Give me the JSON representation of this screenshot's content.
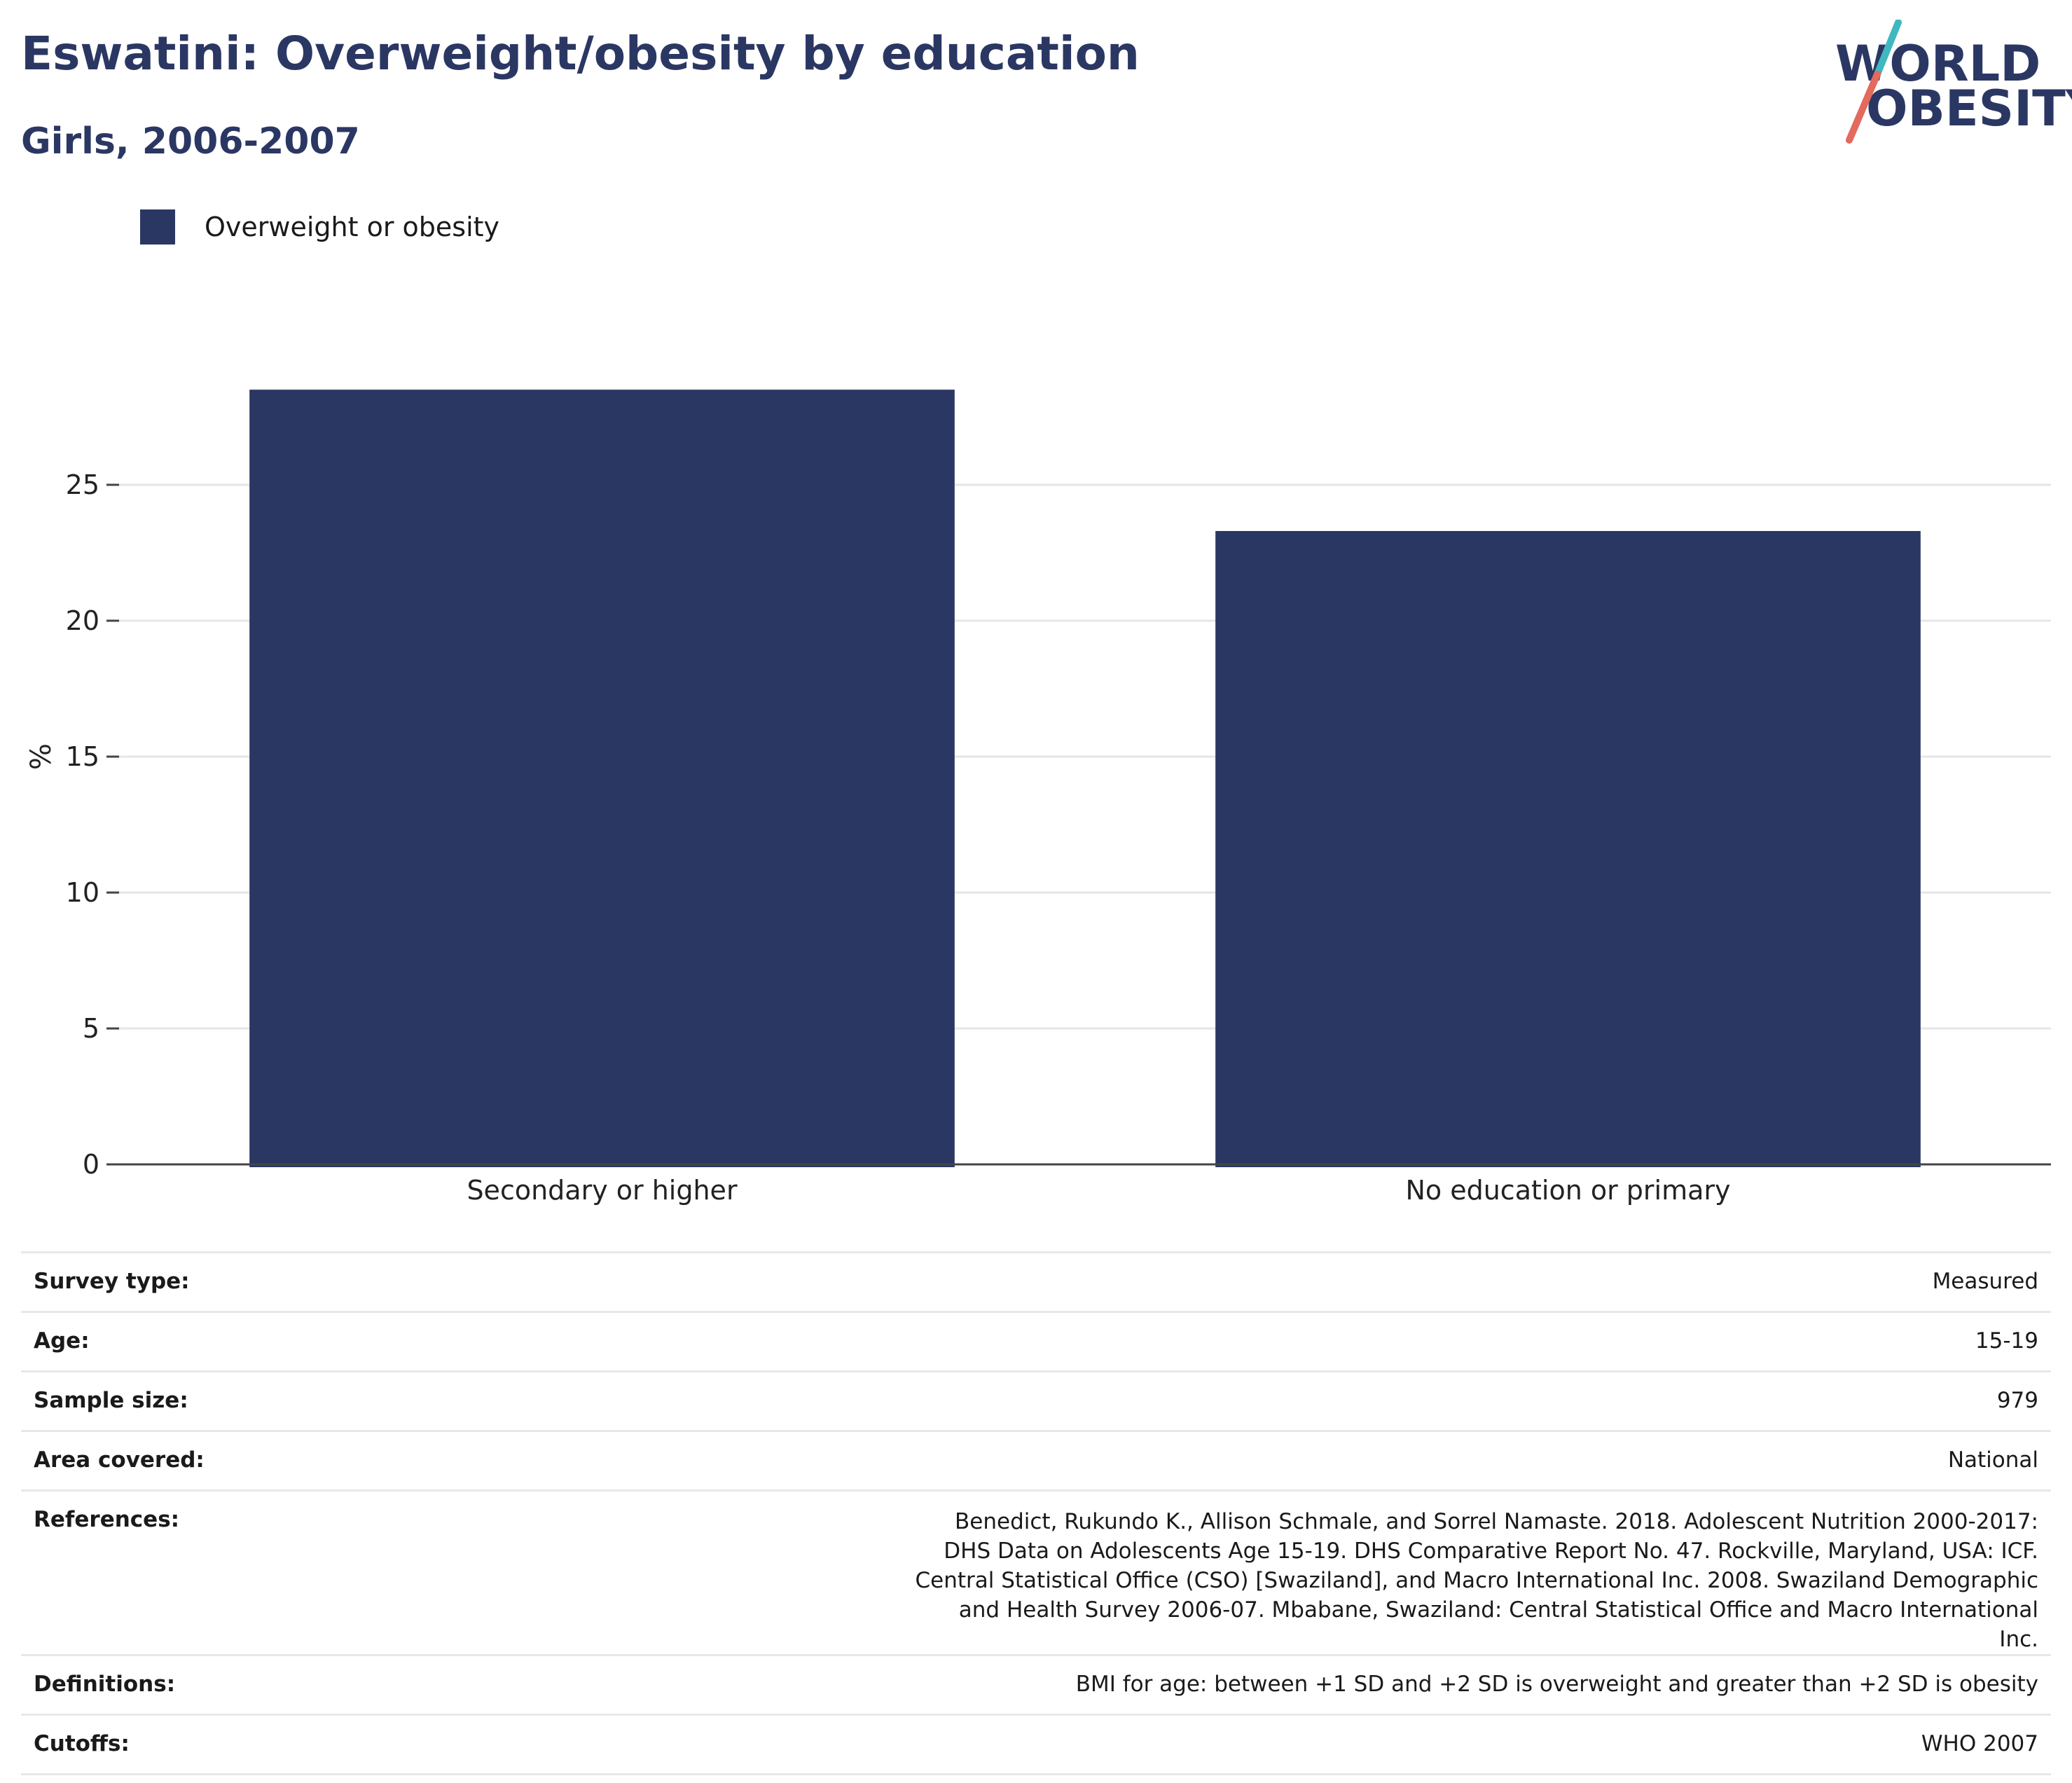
{
  "header": {
    "title": "Eswatini: Overweight/obesity by education",
    "subtitle": "Girls, 2006-2007"
  },
  "logo": {
    "line1": "WORLD",
    "line2": "OBESITY",
    "accent_colors": [
      "#3fb8c0",
      "#e36a5c"
    ]
  },
  "legend": {
    "label": "Overweight or obesity",
    "color": "#2b3763"
  },
  "chart_data": {
    "type": "bar",
    "categories": [
      "Secondary or higher",
      "No education or primary"
    ],
    "series": [
      {
        "name": "Overweight or obesity",
        "values": [
          28.5,
          23.3
        ],
        "color": "#2b3763"
      }
    ],
    "title": "Eswatini: Overweight/obesity by education",
    "subtitle": "Girls, 2006-2007",
    "xlabel": "",
    "ylabel": "%",
    "ylim": [
      0,
      30
    ],
    "yticks": [
      0,
      5,
      10,
      15,
      20,
      25
    ],
    "grid": true,
    "legend_position": "top-left"
  },
  "info": {
    "rows": [
      {
        "label": "Survey type:",
        "value": "Measured"
      },
      {
        "label": "Age:",
        "value": "15-19"
      },
      {
        "label": "Sample size:",
        "value": "979"
      },
      {
        "label": "Area covered:",
        "value": "National"
      },
      {
        "label": "References:",
        "value": "Benedict, Rukundo K., Allison Schmale, and Sorrel Namaste. 2018. Adolescent Nutrition 2000-2017: DHS Data on Adolescents Age 15-19. DHS Comparative Report No. 47. Rockville, Maryland, USA: ICF. Central Statistical Office (CSO) [Swaziland], and Macro International Inc. 2008. Swaziland Demographic and Health Survey 2006-07. Mbabane, Swaziland: Central Statistical Office and Macro International Inc."
      },
      {
        "label": "Definitions:",
        "value": "BMI for age: between +1 SD and +2 SD is overweight and greater than +2 SD is obesity"
      },
      {
        "label": "Cutoffs:",
        "value": "WHO 2007"
      }
    ]
  }
}
